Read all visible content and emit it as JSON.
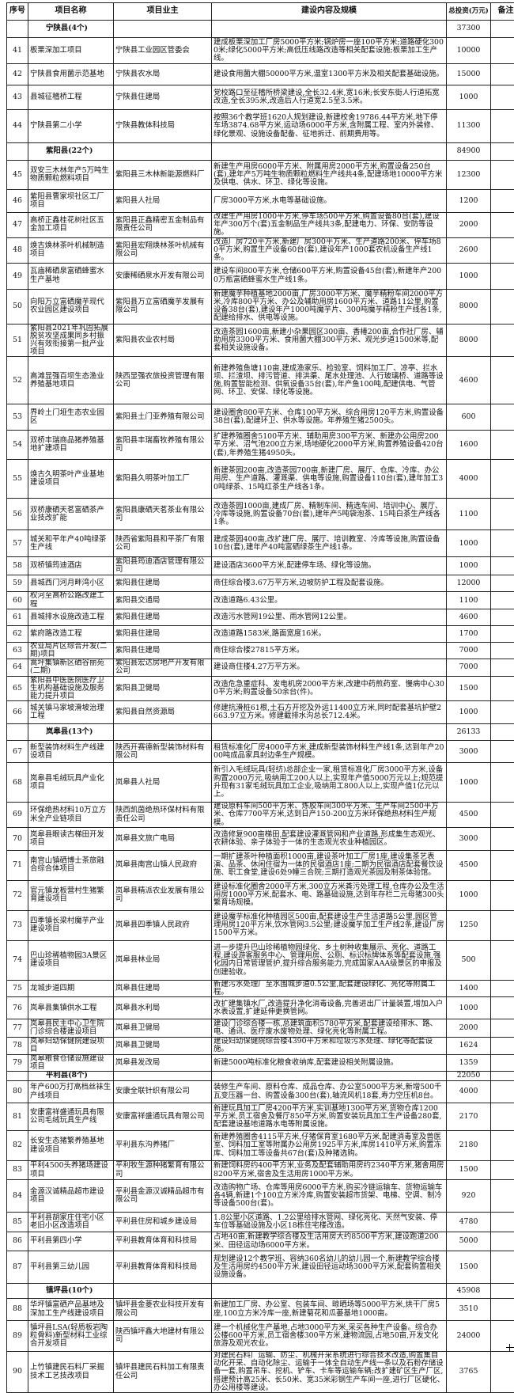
{
  "header": {
    "no": "序号",
    "name": "项目名称",
    "owner": "项目业主",
    "content": "建设内容及规模",
    "invest": "总投资(万元)",
    "remark": "备注"
  },
  "rows": [
    {
      "type": "group",
      "name": "宁陕县(4个)",
      "invest": "37300"
    },
    {
      "no": "41",
      "name": "板栗深加工项目",
      "owner": "宁陕县工业园区管委会",
      "content": "建成板栗深加工厂房5000平方米;锅炉房一座100平方米;道路硬化3000米;绿化5000平方米;高低压线路改造等相关配套设施;板栗加工生产线。",
      "invest": "10000"
    },
    {
      "no": "42",
      "name": "宁陕县食用菌示范基地",
      "owner": "宁陕县农水局",
      "content": "建设食用菌大棚50000平方米,温室1300平方米及相关配套基础设施。",
      "invest": "15000"
    },
    {
      "no": "43",
      "name": "县城征稽桥工程",
      "owner": "宁陕县住建局",
      "content": "党校路口至征稽所桥梁建设,全长32.4米,宽16米;长安东街人行道拓宽改造,全长395米,改造后人行道宽2.5至3.5米。",
      "invest": "1000"
    },
    {
      "no": "44",
      "name": "宁陕县第二小学",
      "owner": "宁陕县教体科技局",
      "content": "按照36个教学班1620人规划建设,新建校舍19786.44平方米,地下停车场3874.68平方米,运动场6000平方米,含附属工程、室内外装修、绿化景观、设施设备配备、征地拆迁、前期费用等。",
      "invest": "11300"
    },
    {
      "type": "group",
      "name": "紫阳县(22个)",
      "invest": "84900"
    },
    {
      "no": "45",
      "name": "双安三木林年产5万吨生物质颗粒燃料项目",
      "owner": "紫阳县三木林新能源燃料厂",
      "content": "新建生产用房6000平方米、附属用房2000平方米,购置设备250台(套),建年产5万吨生物质颗粒燃料生产线共4条,配建场地10000平方米及供电、供水、环卫、绿化等设施。",
      "invest": "12300"
    },
    {
      "no": "46",
      "name": "紫阳县曹家坝社区工厂项目",
      "owner": "紫阳县人社局",
      "content": "厂房3000平方米,水电等基础设施。",
      "invest": "1200"
    },
    {
      "no": "47",
      "name": "高桥正鑫桂花树社区五金加工项目",
      "owner": "紫阳县正鑫精密五金制品有限责任公司",
      "content": "改建生产用房1000平方米,停车场500平方米,购置设备80台(套),建设年产300万个(套)五金制品生产线共3条,配建电力、环保、安防等设施。",
      "invest": "2000"
    },
    {
      "no": "48",
      "name": "焕古焕林茶叶机械制造项目",
      "owner": "紫阳县宏翔焕林茶叶机械有限公司",
      "content": "改造厂房720平方米,新建厂房300平方米、生产道路200米、停车场80平方米,购置生产设备60台(套),建设年产1000套农机设备生产线1条。",
      "invest": "2600"
    },
    {
      "no": "49",
      "name": "瓦庙稀硒泉富硒蜂蜜水生产基地",
      "owner": "安康稀硒泉水开发有限公司",
      "content": "建设车间800平方米,仓储600平方米,购置设备45台(套),新建年产2000万瓶富硒蜂蜜水生产线1条。",
      "invest": "1000"
    },
    {
      "no": "50",
      "name": "向阳万立富硒魔芋现代农业园区建设项目",
      "owner": "紫阳县万立富硒魔芋发展有限公司",
      "content": "新建魔芋种植基地2000亩,厂房3000平方米、魔芋精粉车间2000平方米,冷库800平方米、办公及辅助用房1600平方米、道路11公里,购置设备38台(套),建设年产1000吨魔芋片、300吨魔芋精粉生产线各1条,配建给排水、供电等设施。",
      "invest": "8000"
    },
    {
      "no": "51",
      "name": "紫阳县2021年巩固拓展脱贫攻坚成果同乡村振兴有效衔接第一批产业项目",
      "owner": "紫阳县农业农村局",
      "content": "改造茶园1600亩,新建小杂果园区300亩、香椿200亩,合作社厂房、辅助用房3300平方米、食用菌大棚300平方米、观光步道1500米等,配套相关设施设备。",
      "invest": "8000"
    },
    {
      "no": "52",
      "name": "高滩显强百坝生态渔业养殖基地项目",
      "owner": "陕西显强农旅投资管理有限公司",
      "content": "新建养殖鱼塘110亩,建成渔家乐、检验室、饲料加工厂、凉亭、拦水坝、拦渣坝、排污管道、排洪渠、尾水处理池、人行玻璃桥、道路等设施,购置智能检测、供氧设备35台(套),年产鱼100吨,配建供电、气管网、环卫、安保、绿化等设施。",
      "invest": "4600"
    },
    {
      "no": "53",
      "name": "界岭土门垭生态农业园区",
      "owner": "紫阳县土门亚养殖有限公司",
      "content": "建设圈舍800平方米、仓库100平方米、综合用房120平方米,购置设备38台(套),配建环卫、供水等设施。年养殖生猪2500头。",
      "invest": "600"
    },
    {
      "no": "54",
      "name": "双桥丰瑞商品猪养殖基地扩建项目",
      "owner": "紫阳县丰瑞畜牧养殖有限公司",
      "content": "扩建养殖圈舍5100平方米、辅助用房300平方米、新建办公用房200平方米、沼气池200立方米,场地硬化2000平方米,购置养殖设备420台(套),年养殖生猪4950头。",
      "invest": "1600"
    },
    {
      "no": "55",
      "name": "焕古久明茶叶产业基地建设项目",
      "owner": "紫阳县久明茶叶加工厂",
      "content": "新建茶园200亩,改造茶园700亩,新建厂房、展厅、仓库、冷库、办公用房、生产道路、灌溉渠、供电等设施,购置设备110台(套),建年加工30吨绿茶、15吨红茶生产线各1条。",
      "invest": "4000"
    },
    {
      "no": "56",
      "name": "双桥康硒天茗富硒茶产业技改扩能",
      "owner": "紫阳县康硒天茗茶业有限公司",
      "content": "改造茶园1000亩,建成厂房、精制车间、精选车间、培训中心、展厅、冷库等设施,购置设备70台(套),建年产5吨袋泡茶、15吨白茶生产线各1条。",
      "invest": "1100"
    },
    {
      "no": "57",
      "name": "城关和平年产40吨绿茶生产线",
      "owner": "陕西省紫阳县和平茶厂有限公司",
      "content": "建成茶园400亩,改扩建厂房、展厅、培训教室、冷库等设施,购置设备10台(套),建年产40吨富硒绿茶生产线1条。",
      "invest": "1000"
    },
    {
      "no": "58",
      "name": "双桥镇筠迪酒店",
      "owner": "紫阳县筠迪酒店管理有限公司",
      "content": "建设酒店3600平方米,配建停车场、绿化等设施。",
      "invest": "1000"
    },
    {
      "no": "59",
      "name": "县城西门河月畔湾小区",
      "owner": "紫阳县住建局",
      "content": "商住综合楼3.67万平方米,边坡防护工程及配套设施。",
      "invest": "12000"
    },
    {
      "no": "60",
      "name": "权河至高桥公路改建工程",
      "owner": "紫阳县交通局",
      "content": "改造道路6.43公里。",
      "invest": "1100"
    },
    {
      "no": "61",
      "name": "县城排水设施改造工程",
      "owner": "紫阳县住建局",
      "content": "改造污水管网19公里、雨水管网12公里。",
      "invest": "4600"
    },
    {
      "no": "62",
      "name": "紫府路改造工程",
      "owner": "紫阳县住建局",
      "content": "改造道路1583米,路面宽度16米。",
      "invest": "1700"
    },
    {
      "no": "63",
      "name": "农业局片区综合开发(二期)项目",
      "owner": "紫阳县住建局",
      "content": "商住综合楼27815平方米。",
      "invest": "7000"
    },
    {
      "no": "64",
      "name": "蒿坪集镇新区硒谷丽苑(二期)",
      "owner": "紫阳县宏达房地产开发有限公司",
      "content": "建设商住楼4.27万平方米。",
      "invest": "7000"
    },
    {
      "no": "65",
      "name": "紫阳县中医医院医疗卫生机构基础设施及服务能力提升项目",
      "owner": "紫阳县卫健局",
      "content": "改造危急重症科、发电机房2000平方米,改建中药煎药室、慢病中心300平方米;购置设备50余台(件)。",
      "invest": "1500"
    },
    {
      "no": "66",
      "name": "城关镇马家坡滑坡治理工程",
      "owner": "紫阳县自然资源局",
      "content": "修建抗滑桩61根,土石方开挖及外运11400立方米,同时配套基坑护壁2663.97立方米。修建截排水沟总长712.4米。",
      "invest": "1000"
    },
    {
      "type": "group",
      "name": "岚皋县(13个)",
      "invest": "26133"
    },
    {
      "no": "67",
      "name": "新型装饰材料生产线建设项目",
      "owner": "陕西开赛德新型装饰材料有限公司",
      "content": "租赁标准化厂房4000平方米,建成新型装饰材料生产线1条,达到年产2000吨成品家具封边条生产规模。",
      "invest": "3000"
    },
    {
      "no": "68",
      "name": "岚皋县毛绒玩具产业化项目",
      "owner": "岚皋县人社局",
      "content": "新引入毛绒玩具(轻纺)总部企业一家,租赁标准化厂房3000平方米,设备购置2000万元,吸纳用工200人以上,实现年产值5000万元以上;规范提升现有31家毛绒玩具加工企业,吸纳用工800人以上,实现产值1亿元以上。",
      "invest": "1000"
    },
    {
      "no": "69",
      "name": "环保绝热材料10万立方米全产业链项目",
      "owner": "陕西凯茵绝热环保材料有限责任公司",
      "content": "建设原料车间500平方米、炼胶车间300平方米、生产车间2500平方米、仓库7700平方米,达到日产150-200立方米环保绝热材料生产规模。",
      "invest": "4500"
    },
    {
      "no": "70",
      "name": "岚皋县眼读古梯田开发项目",
      "owner": "岚皋县文旅广电局",
      "content": "改造修复900亩梯田,配套建设灌溉管网和产业道路,形成集生态观光、农耕体验、亲子体验于一体的生态观光农业种植园区。",
      "invest": "3000"
    },
    {
      "no": "71",
      "name": "南宫山镇硒博士茶旅融合综合体项目",
      "owner": "岚皋县南宫山镇人民政府",
      "content": "一期扩建茶叶种植面积1000亩,建设茶叶加工厂房1座,建设集茶艺表演、品茶、休闲住宿为一体的民宿酒店1座;二期为民宿酒店配套餐饮设施、职工食堂,建设6处9幢三合院;三期打造观光茶园及制茶体验馆。",
      "invest": "4500"
    },
    {
      "no": "72",
      "name": "官元镇龙板营村生猪繁育建设项目",
      "owner": "岚皋县精派农业发展有限公司",
      "content": "建设标准化圈舍2000平方米,300立方米粪污处理工程,仓库办公及生活用房1000平方米,配套水、电、路基础设施,达到年存栏二元母猪300头繁育场规模。",
      "invest": "1000"
    },
    {
      "no": "73",
      "name": "四季镇长梁村魔芋产业建设项目",
      "owner": "岚皋县四季镇人民政府",
      "content": "建设魔芋标准化种植园区500亩,配套建设生产生活道路5公里,园区管理用房120平方米,饮水管网3.5公里;建设魔芋加工生产线2条,建设厂房1500平方米。",
      "invest": "1250"
    },
    {
      "no": "74",
      "name": "巴山珍稀植物园3A景区建设项目",
      "owner": "岚皋县林业局",
      "content": "进一步提升巴山珍稀植物园绿化、乡土树种收集展示、亮化、道路工程,建设游客服务中心、管理用房、公厕、标识标牌体系等配套设施,强化园内日常管理管护,提升综合服务能力,完成国家AAA级景区的申报及创建验收。",
      "invest": "500"
    },
    {
      "no": "75",
      "name": "龙城步道四期",
      "owner": "岚皋县住建局",
      "content": "新建污水处理厂至水围城步道0.5公里,配套建设绿化、亮化等附属工程。",
      "invest": "1400"
    },
    {
      "no": "76",
      "name": "岚皋县集镇供水工程",
      "owner": "岚皋县水利局",
      "content": "改扩建集镇水厂,改造提升净化消毒设备,完善进出厂计量装置,增加入户水表设置,扩建延伸更换管网。",
      "invest": "1000"
    },
    {
      "no": "77",
      "name": "岚皋县民主中心卫生院门诊综合楼建设项目",
      "owner": "岚皋县卫健局",
      "content": "建设门诊综合楼一栋,总建筑面积5780平方米,配套建设给排水、路、电、通讯、医疗废水废物处理、绿化亮化等附属工程。",
      "invest": "2000"
    },
    {
      "no": "78",
      "name": "岚皋妇幼保健院建设项目",
      "owner": "岚皋县卫健局",
      "content": "建设妇幼保健院综合楼4390平方米和垃圾污水处理、绿化等配套设施。",
      "invest": "1624"
    },
    {
      "no": "79",
      "name": "岚皋粮食仓储设施建设项目",
      "owner": "岚皋县发改局",
      "content": "新建5000吨标准化粮食收纳库,配套建设相关附属设施。",
      "invest": "1359"
    },
    {
      "type": "group",
      "name": "平利县(8个)",
      "invest": "22050"
    },
    {
      "no": "80",
      "name": "年产600万打高档丝袜生产线项目",
      "owner": "安康全联针织有限公司",
      "content": "装修生产车间、原料仓库、成品仓库、办公室5000平方米,新增500千瓦变压器一台、购置设备300台(套),轴流风机18套,寿力空压机8台。",
      "invest": "4000"
    },
    {
      "no": "81",
      "name": "安康富祥盛通玩具有限公司毛绒玩具生产线",
      "owner": "安康富祥盛通玩具有限公司",
      "content": "新建玩具加工厂房4200平方米,实训基地1300平方米,货物仓库1200平方米,员工宿舍及餐厅850平方米,购置安装玩具加工生产设备280套,配套建设基地道路水电等附属设施。",
      "invest": "2170"
    },
    {
      "no": "82",
      "name": "长安生态猪繁养殖基地建设项目",
      "owner": "平利县东沟养猪厂",
      "content": "新建养殖圈舍4115平方米,仔猪保育室1680平方米,配建消毒室及兽医室、饲料加工室等附属办公用房1925平方米,库房1410平方米,购置冻库、饲料加工等设备共67台(套)及种猪选购。",
      "invest": "2180"
    },
    {
      "no": "83",
      "name": "平利4500头养猪场建设项目",
      "owner": "平利牧生源种猪繁育有限公司",
      "content": "新建饲料房约400平方米,业务及配套辅助用房约2340平方米,猪舍用房8200平方米,宿舍及生活用房1000平方米。",
      "invest": "1500"
    },
    {
      "no": "84",
      "name": "金源汉诚精品超市建设项目",
      "owner": "平利县金源汉诚精品超市有限公司",
      "content": "改造购物广场、仓库等用房6000平方米,购买冷链运输车、货物运输车各4辆,新建1个100立方米冷库,购置安装超市货架、电梯、空调、制冷等设备500台(套)。",
      "invest": "920"
    },
    {
      "no": "85",
      "name": "平利县胡家庄住宅小区老旧小区改造项目",
      "owner": "平利县住房和城乡建设局",
      "content": "1.8公里小区道路、1.2公里给排水管网、绿化亮化、天然气安装、停车位等基础设施及小区18栋住宅楼改造。",
      "invest": "4780"
    },
    {
      "no": "86",
      "name": "平利县第四小学",
      "owner": "平利县教育体育和科技局",
      "content": "占地40亩,新建教学综合楼及生活用房大约8500平方米,建设跑道200米、田径运动场6000平方米。",
      "invest": "5000"
    },
    {
      "no": "87",
      "name": "平利县第三幼儿园",
      "owner": "平利县教育体育和科技局",
      "content": "规划建设12个教学班、容纳360名幼儿的幼儿园一个,新建教学综合楼及生活用房约4500平方米,建设田径运动场3000平方米,配套购置相关设施设备。",
      "invest": "1500"
    },
    {
      "type": "group",
      "name": "镇坪县(10个)",
      "invest": "45908"
    },
    {
      "no": "88",
      "name": "华坪镇富硒产品基地及深加工生产线建设项目",
      "owner": "镇坪县金菱农业科技开发有限公司",
      "content": "新建加工厂房、办公室、包装车间、晾晒场等5000平方米,烘干厂房5座,100立方米冷库一座,新建菊花和瓜蒌基地1000亩。",
      "invest": "3510"
    },
    {
      "no": "89",
      "name": "镇坪县LSA(轻质板岩陶粒骨料)新型材料工业综合开发项目",
      "owner": "陕西镇坪鑫大地建材有限公司",
      "content": "建一个机械化生产基地,占地3000平方米,采买各种生产设备。综合办公楼600平方米,员工宿舍楼300平方米,建物流园,占地50亩,开发文化旅游及观光农业。",
      "invest": "24000"
    },
    {
      "no": "90",
      "name": "上竹镇建民石料厂采掘技术工艺技改项目",
      "owner": "镇坪县建民石料加工有限责任公司",
      "content": "对建民石料厂运输、防尘、机械开采系统进行综合技术改造,购置集自动化开采、自动化除尘、运输于一体全自动生产线一条以及石粉存储设备一套,购置吊车、挖机、铲车、卡车等运输车辆;改扩建矿区生产厂区,搭建预计高25米、长50米、宽35米彩钢生产车间一座,进行厂区硬化、办公用楼等建设。",
      "invest": "3765"
    }
  ]
}
